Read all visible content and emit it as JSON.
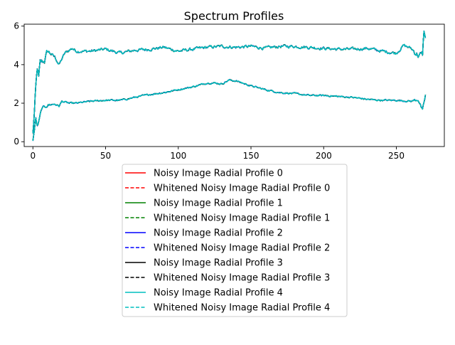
{
  "chart_data": {
    "type": "line",
    "title": "Spectrum Profiles",
    "xlabel": "",
    "ylabel": "",
    "xlim": [
      -6,
      283
    ],
    "ylim": [
      -0.25,
      6.1
    ],
    "xticks": [
      0,
      50,
      100,
      150,
      200,
      250
    ],
    "yticks": [
      0,
      2,
      4,
      6
    ],
    "grid": false,
    "legend_position": "below-center",
    "x_max": 270,
    "upper_curve_anchors": [
      [
        0,
        0.4
      ],
      [
        1,
        1.5
      ],
      [
        2,
        2.8
      ],
      [
        3,
        3.8
      ],
      [
        4,
        3.3
      ],
      [
        5,
        4.1
      ],
      [
        8,
        4.2
      ],
      [
        10,
        4.7
      ],
      [
        15,
        4.4
      ],
      [
        18,
        4.0
      ],
      [
        22,
        4.6
      ],
      [
        27,
        4.85
      ],
      [
        30,
        4.7
      ],
      [
        40,
        4.7
      ],
      [
        50,
        4.8
      ],
      [
        60,
        4.6
      ],
      [
        70,
        4.75
      ],
      [
        80,
        4.8
      ],
      [
        90,
        4.9
      ],
      [
        100,
        4.7
      ],
      [
        110,
        4.8
      ],
      [
        120,
        4.9
      ],
      [
        130,
        4.95
      ],
      [
        140,
        4.9
      ],
      [
        150,
        4.95
      ],
      [
        160,
        4.85
      ],
      [
        170,
        4.95
      ],
      [
        180,
        4.95
      ],
      [
        190,
        4.9
      ],
      [
        200,
        4.85
      ],
      [
        210,
        4.8
      ],
      [
        220,
        4.8
      ],
      [
        230,
        4.85
      ],
      [
        240,
        4.7
      ],
      [
        250,
        4.6
      ],
      [
        255,
        5.0
      ],
      [
        260,
        4.85
      ],
      [
        265,
        4.5
      ],
      [
        268,
        4.5
      ],
      [
        269,
        5.8
      ],
      [
        270,
        5.3
      ]
    ],
    "lower_curve_anchors": [
      [
        0,
        0.1
      ],
      [
        1,
        0.6
      ],
      [
        2,
        1.2
      ],
      [
        3,
        0.8
      ],
      [
        4,
        1.0
      ],
      [
        6,
        1.7
      ],
      [
        10,
        1.9
      ],
      [
        15,
        1.95
      ],
      [
        18,
        1.85
      ],
      [
        20,
        2.1
      ],
      [
        25,
        2.0
      ],
      [
        30,
        2.0
      ],
      [
        40,
        2.1
      ],
      [
        50,
        2.15
      ],
      [
        60,
        2.15
      ],
      [
        70,
        2.3
      ],
      [
        80,
        2.45
      ],
      [
        90,
        2.55
      ],
      [
        100,
        2.7
      ],
      [
        110,
        2.85
      ],
      [
        120,
        3.05
      ],
      [
        125,
        3.05
      ],
      [
        130,
        3.0
      ],
      [
        135,
        3.2
      ],
      [
        140,
        3.15
      ],
      [
        150,
        2.9
      ],
      [
        160,
        2.7
      ],
      [
        170,
        2.55
      ],
      [
        180,
        2.5
      ],
      [
        190,
        2.4
      ],
      [
        200,
        2.4
      ],
      [
        210,
        2.35
      ],
      [
        220,
        2.3
      ],
      [
        230,
        2.2
      ],
      [
        240,
        2.15
      ],
      [
        250,
        2.15
      ],
      [
        260,
        2.1
      ],
      [
        265,
        2.2
      ],
      [
        268,
        1.6
      ],
      [
        270,
        2.4
      ]
    ],
    "series": [
      {
        "name": "Noisy Image Radial Profile 0",
        "color": "#ff0000",
        "dash": "solid"
      },
      {
        "name": "Whitened Noisy Image Radial Profile 0",
        "color": "#ff0000",
        "dash": "dashed"
      },
      {
        "name": "Noisy Image Radial Profile 1",
        "color": "#008000",
        "dash": "solid"
      },
      {
        "name": "Whitened Noisy Image Radial Profile 1",
        "color": "#008000",
        "dash": "dashed"
      },
      {
        "name": "Noisy Image Radial Profile 2",
        "color": "#0000ff",
        "dash": "solid"
      },
      {
        "name": "Whitened Noisy Image Radial Profile 2",
        "color": "#0000ff",
        "dash": "dashed"
      },
      {
        "name": "Noisy Image Radial Profile 3",
        "color": "#000000",
        "dash": "solid"
      },
      {
        "name": "Whitened Noisy Image Radial Profile 3",
        "color": "#000000",
        "dash": "dashed"
      },
      {
        "name": "Noisy Image Radial Profile 4",
        "color": "#00bfbf",
        "dash": "solid"
      },
      {
        "name": "Whitened Noisy Image Radial Profile 4",
        "color": "#00bfbf",
        "dash": "dashed"
      }
    ]
  }
}
